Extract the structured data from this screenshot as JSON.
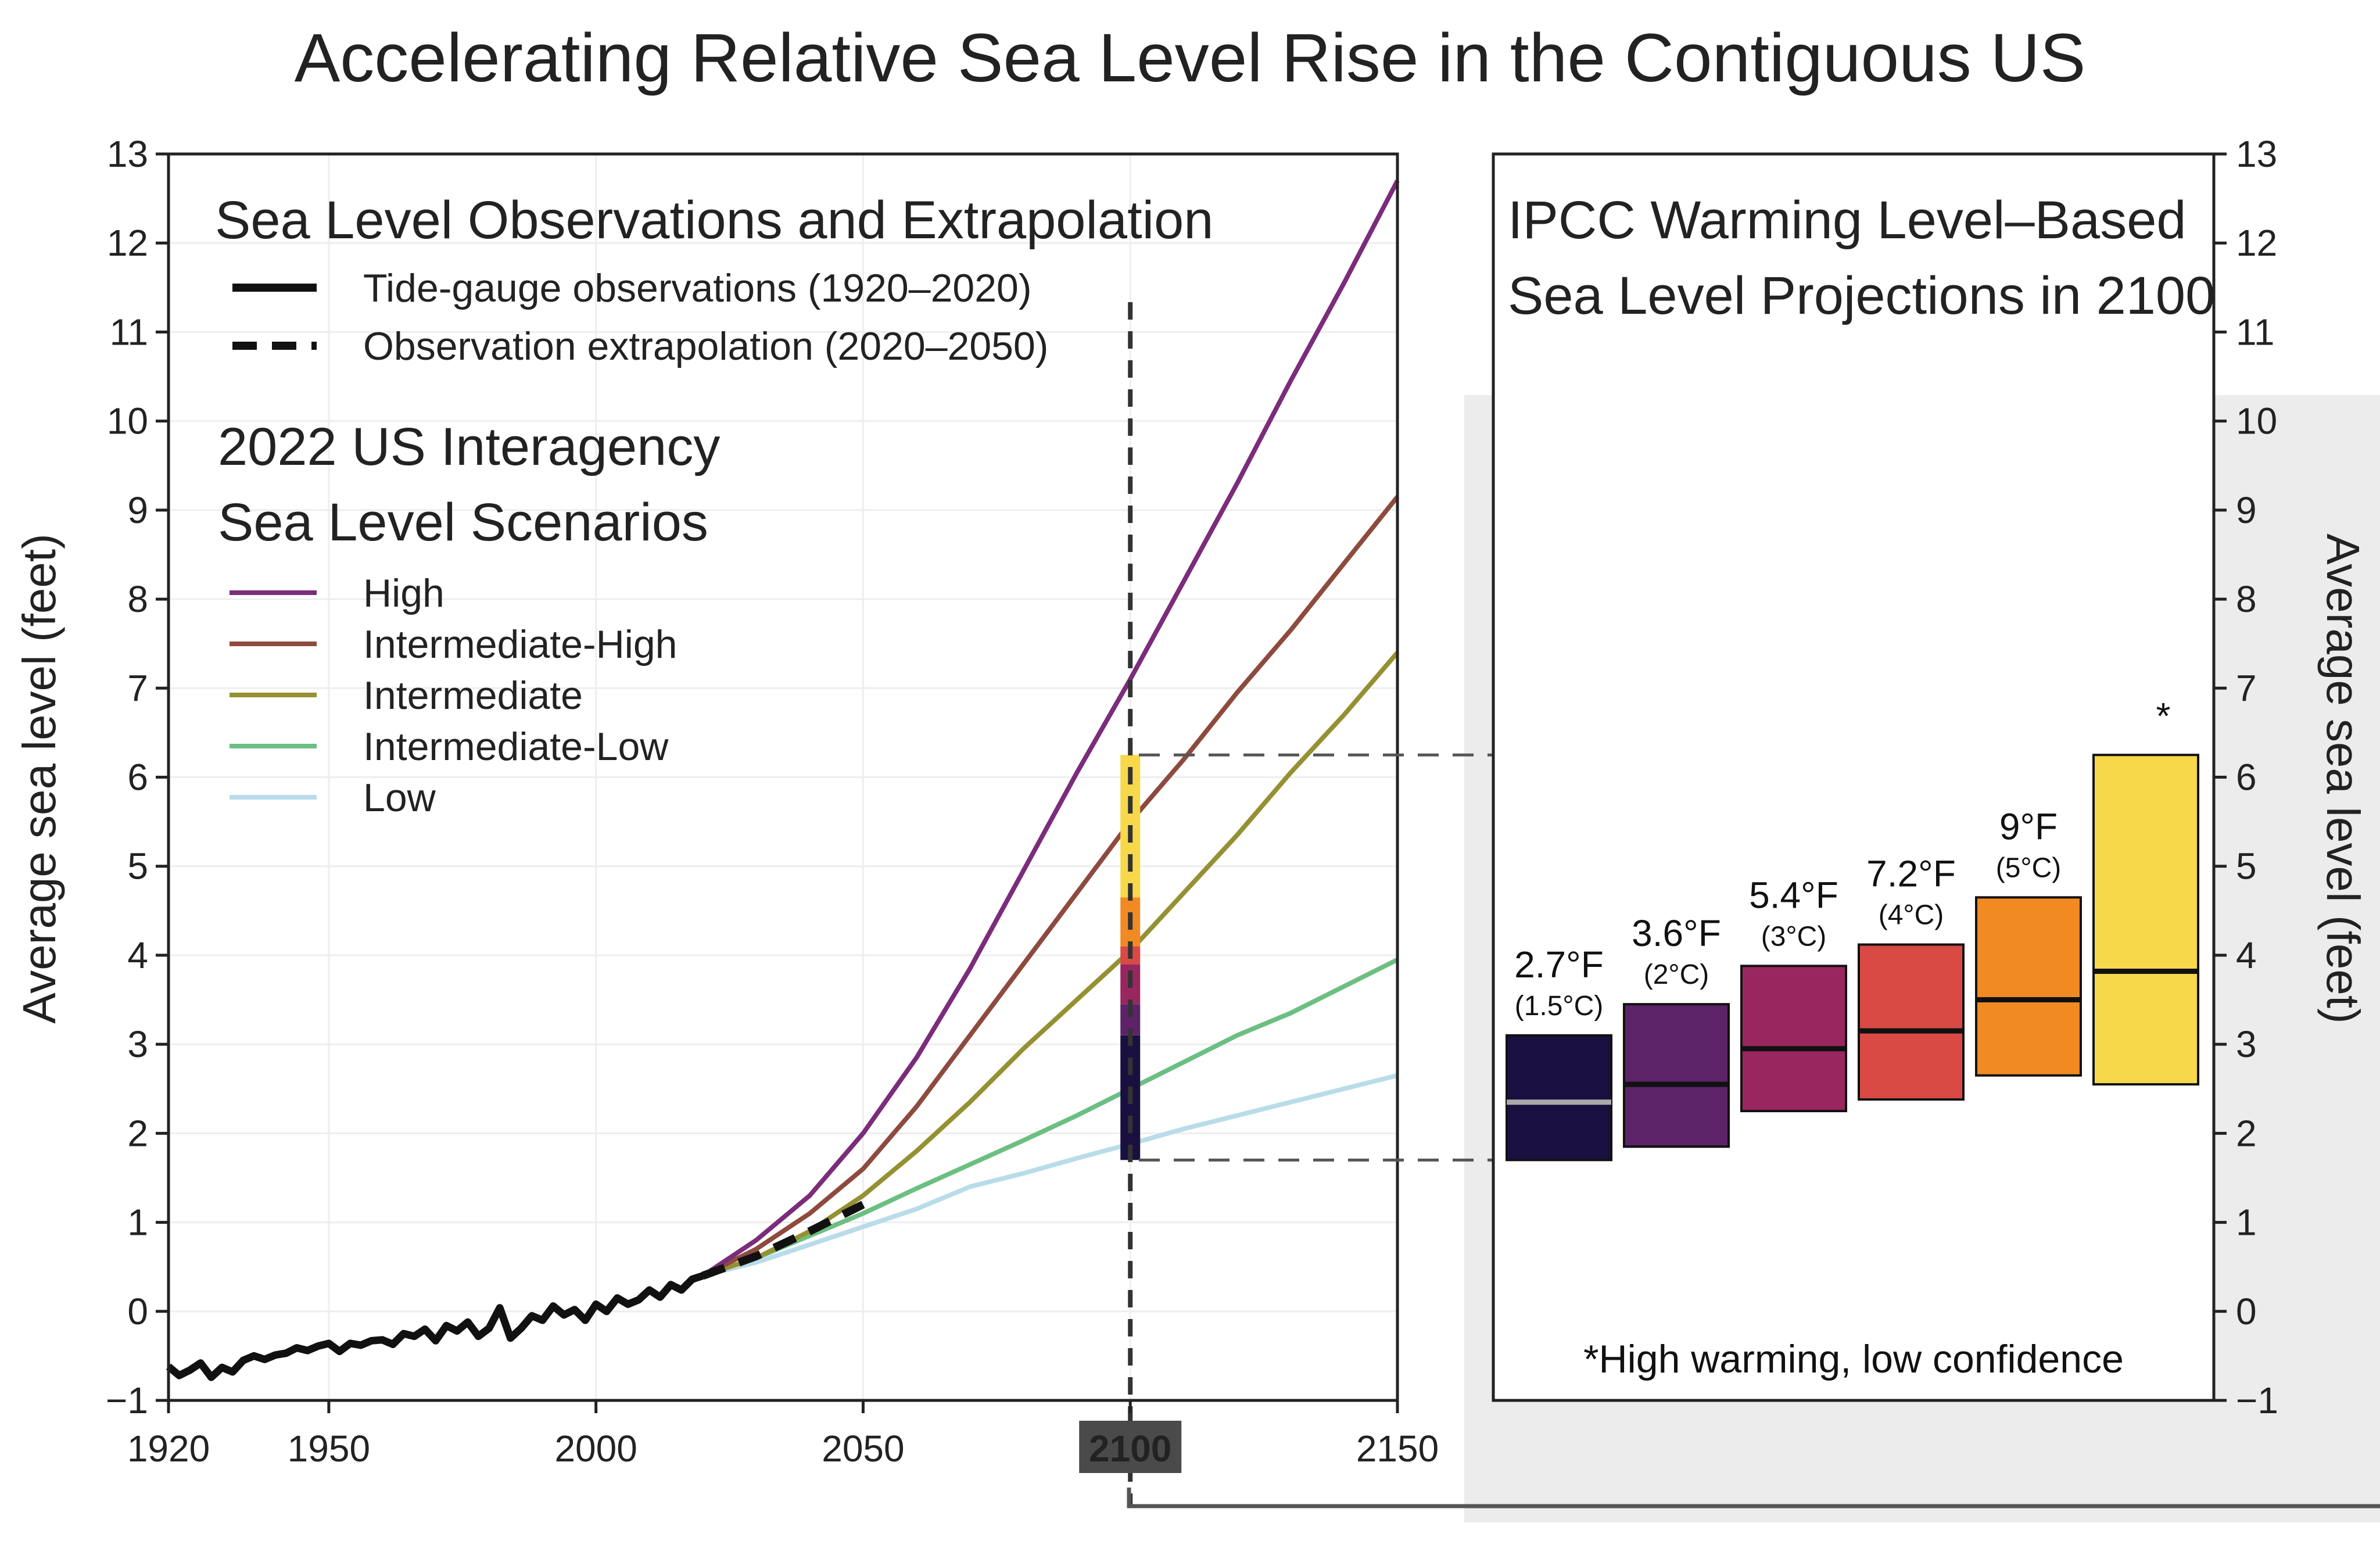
{
  "title": "Accelerating Relative Sea Level Rise in the Contiguous US",
  "colors": {
    "high": "#7b2c7a",
    "intermediate_high": "#8e4a3e",
    "intermediate": "#959031",
    "intermediate_low": "#6cbf82",
    "low": "#b8dcea",
    "observations": "#111111",
    "highlight_2100_bg": "#4a4a4a",
    "right_panel_shadow": "#e8e8e8"
  },
  "chart_data": [
    {
      "type": "line",
      "panel": "left",
      "title": "",
      "xlabel": "",
      "ylabel": "Average sea level (feet)",
      "xlim": [
        1920,
        2150
      ],
      "ylim": [
        -1,
        13
      ],
      "x_ticks": [
        "1920",
        "1950",
        "2000",
        "2050",
        "2100",
        "2150"
      ],
      "highlighted_x_tick": "2100",
      "y_ticks": [
        "−1",
        "0",
        "1",
        "2",
        "3",
        "4",
        "5",
        "6",
        "7",
        "8",
        "9",
        "10",
        "11",
        "12",
        "13"
      ],
      "grid": true,
      "vertical_marker_x": 2100,
      "obs_legend_title": "Sea Level Observations and Extrapolation",
      "obs_legend": [
        {
          "label": "Tide-gauge observations (1920–2020)",
          "style": "solid"
        },
        {
          "label": "Observation extrapolation (2020–2050)",
          "style": "dashed"
        }
      ],
      "scen_legend_title_line1": "2022 US Interagency",
      "scen_legend_title_line2": "Sea Level Scenarios",
      "observations": {
        "x": [
          1920,
          1922,
          1924,
          1926,
          1928,
          1930,
          1932,
          1934,
          1936,
          1938,
          1940,
          1942,
          1944,
          1946,
          1948,
          1950,
          1952,
          1954,
          1956,
          1958,
          1960,
          1962,
          1964,
          1966,
          1968,
          1970,
          1972,
          1974,
          1976,
          1978,
          1980,
          1982,
          1984,
          1986,
          1988,
          1990,
          1992,
          1994,
          1996,
          1998,
          2000,
          2002,
          2004,
          2006,
          2008,
          2010,
          2012,
          2014,
          2016,
          2018,
          2020
        ],
        "y": [
          -0.62,
          -0.72,
          -0.66,
          -0.58,
          -0.74,
          -0.63,
          -0.68,
          -0.55,
          -0.5,
          -0.54,
          -0.49,
          -0.47,
          -0.41,
          -0.44,
          -0.39,
          -0.36,
          -0.45,
          -0.36,
          -0.38,
          -0.33,
          -0.32,
          -0.37,
          -0.25,
          -0.28,
          -0.2,
          -0.33,
          -0.16,
          -0.22,
          -0.12,
          -0.28,
          -0.19,
          0.04,
          -0.3,
          -0.19,
          -0.05,
          -0.1,
          0.06,
          -0.04,
          0.02,
          -0.1,
          0.08,
          0.0,
          0.15,
          0.08,
          0.13,
          0.24,
          0.16,
          0.3,
          0.24,
          0.36,
          0.4
        ]
      },
      "extrapolation": {
        "x": [
          2020,
          2030,
          2040,
          2050
        ],
        "y": [
          0.4,
          0.62,
          0.9,
          1.2
        ]
      },
      "series": [
        {
          "name": "High",
          "x": [
            2020,
            2030,
            2040,
            2050,
            2060,
            2070,
            2080,
            2090,
            2100,
            2110,
            2120,
            2130,
            2140,
            2150
          ],
          "y": [
            0.4,
            0.8,
            1.3,
            2.0,
            2.85,
            3.85,
            4.95,
            6.05,
            7.1,
            8.2,
            9.3,
            10.45,
            11.55,
            12.7
          ]
        },
        {
          "name": "Intermediate-High",
          "x": [
            2020,
            2030,
            2040,
            2050,
            2060,
            2070,
            2080,
            2090,
            2100,
            2110,
            2120,
            2130,
            2140,
            2150
          ],
          "y": [
            0.4,
            0.7,
            1.1,
            1.6,
            2.3,
            3.1,
            3.9,
            4.7,
            5.5,
            6.2,
            6.95,
            7.65,
            8.4,
            9.15
          ]
        },
        {
          "name": "Intermediate",
          "x": [
            2020,
            2030,
            2040,
            2050,
            2060,
            2070,
            2080,
            2090,
            2100,
            2110,
            2120,
            2130,
            2140,
            2150
          ],
          "y": [
            0.4,
            0.6,
            0.9,
            1.3,
            1.8,
            2.35,
            2.95,
            3.5,
            4.05,
            4.7,
            5.35,
            6.05,
            6.7,
            7.4
          ]
        },
        {
          "name": "Intermediate-Low",
          "x": [
            2020,
            2030,
            2040,
            2050,
            2060,
            2070,
            2080,
            2090,
            2100,
            2110,
            2120,
            2130,
            2140,
            2150
          ],
          "y": [
            0.4,
            0.6,
            0.85,
            1.1,
            1.38,
            1.65,
            1.92,
            2.2,
            2.5,
            2.8,
            3.1,
            3.35,
            3.65,
            3.95
          ]
        },
        {
          "name": "Low",
          "x": [
            2020,
            2030,
            2040,
            2050,
            2060,
            2070,
            2080,
            2090,
            2100,
            2110,
            2120,
            2130,
            2140,
            2150
          ],
          "y": [
            0.4,
            0.55,
            0.75,
            0.95,
            1.15,
            1.4,
            1.55,
            1.72,
            1.88,
            2.05,
            2.2,
            2.35,
            2.5,
            2.65
          ]
        }
      ],
      "stacked_bar_2100": [
        {
          "level": "1.5°C",
          "from": 1.7,
          "to": 3.1
        },
        {
          "level": "2°C",
          "from": 3.1,
          "to": 3.45
        },
        {
          "level": "3°C",
          "from": 3.45,
          "to": 3.9
        },
        {
          "level": "4°C",
          "from": 3.9,
          "to": 4.1
        },
        {
          "level": "5°C",
          "from": 4.1,
          "to": 4.65
        },
        {
          "level": "High warming",
          "from": 4.65,
          "to": 6.25
        }
      ]
    },
    {
      "type": "box",
      "panel": "right",
      "title_line1": "IPCC Warming Level–Based",
      "title_line2": "Sea Level Projections in 2100",
      "ylabel": "Average sea level (feet)",
      "ylim": [
        -1,
        13
      ],
      "y_ticks": [
        "−1",
        "0",
        "1",
        "2",
        "3",
        "4",
        "5",
        "6",
        "7",
        "8",
        "9",
        "10",
        "11",
        "12",
        "13"
      ],
      "boxes": [
        {
          "label": "2.7°F",
          "sublabel": "(1.5°C)",
          "low": 1.7,
          "median": 2.35,
          "high": 3.1,
          "color": "#1a1040"
        },
        {
          "label": "3.6°F",
          "sublabel": "(2°C)",
          "low": 1.85,
          "median": 2.55,
          "high": 3.45,
          "color": "#5c2369"
        },
        {
          "label": "5.4°F",
          "sublabel": "(3°C)",
          "low": 2.25,
          "median": 2.95,
          "high": 3.88,
          "color": "#9a2660"
        },
        {
          "label": "7.2°F",
          "sublabel": "(4°C)",
          "low": 2.38,
          "median": 3.15,
          "high": 4.12,
          "color": "#d94a45"
        },
        {
          "label": "9°F",
          "sublabel": "(5°C)",
          "low": 2.65,
          "median": 3.5,
          "high": 4.65,
          "color": "#f28a23"
        },
        {
          "label": "",
          "sublabel": "",
          "marker": "*",
          "low": 2.55,
          "median": 3.82,
          "high": 6.25,
          "color": "#f6d84a"
        }
      ],
      "footnote": "*High warming, low confidence"
    }
  ]
}
